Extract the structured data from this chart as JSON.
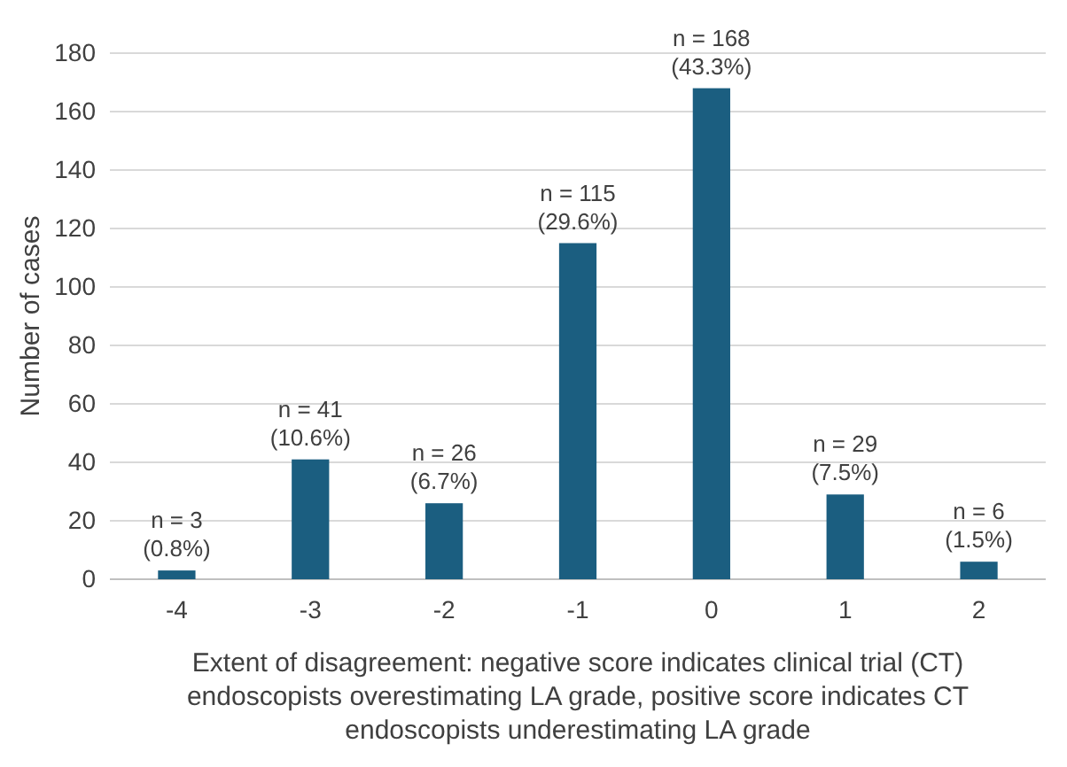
{
  "chart_data": {
    "type": "bar",
    "ylabel": "Number of cases",
    "xlabel": "Extent of disagreement: negative score indicates clinical trial (CT) endoscopists overestimating LA grade, positive score indicates CT endoscopists underestimating LA grade",
    "categories": [
      "-4",
      "-3",
      "-2",
      "-1",
      "0",
      "1",
      "2"
    ],
    "values": [
      3,
      41,
      26,
      115,
      168,
      29,
      6
    ],
    "value_labels": [
      "n = 3\n(0.8%)",
      "n = 41\n(10.6%)",
      "n = 26\n(6.7%)",
      "n = 115\n(29.6%)",
      "n = 168\n(43.3%)",
      "n = 29\n(7.5%)",
      "n = 6\n(1.5%)"
    ],
    "color": "#1b5e80",
    "ylim": [
      0,
      180
    ],
    "yticks": [
      0,
      20,
      40,
      60,
      80,
      100,
      120,
      140,
      160,
      180
    ],
    "grid": "y"
  }
}
